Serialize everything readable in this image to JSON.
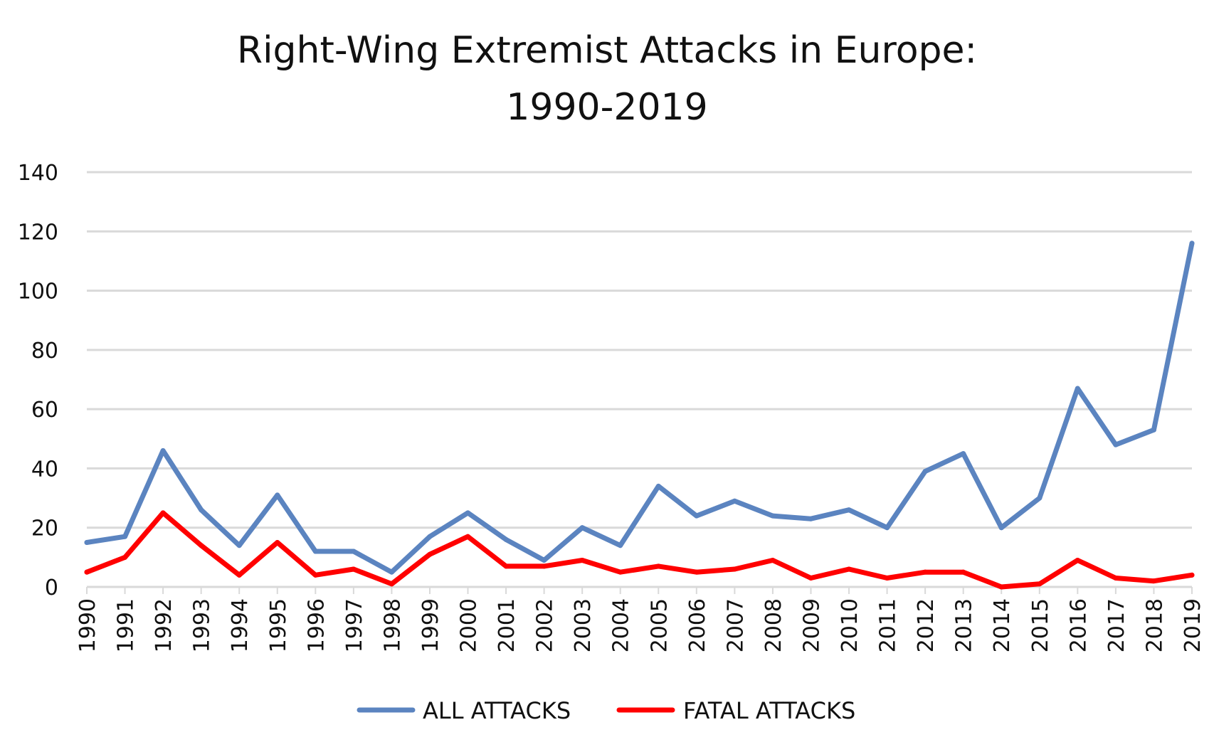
{
  "chart_data": {
    "type": "line",
    "title": "Right-Wing Extremist Attacks in Europe:",
    "subtitle": "1990-2019",
    "xlabel": "",
    "ylabel": "",
    "x": [
      "1990",
      "1991",
      "1992",
      "1993",
      "1994",
      "1995",
      "1996",
      "1997",
      "1998",
      "1999",
      "2000",
      "2001",
      "2002",
      "2003",
      "2004",
      "2005",
      "2006",
      "2007",
      "2008",
      "2009",
      "2010",
      "2011",
      "2012",
      "2013",
      "2014",
      "2015",
      "2016",
      "2017",
      "2018",
      "2019"
    ],
    "ylim": [
      0,
      140
    ],
    "yticks": [
      "0",
      "20",
      "40",
      "60",
      "80",
      "100",
      "120",
      "140"
    ],
    "grid": true,
    "legend_position": "bottom-center",
    "series": [
      {
        "name": "ALL ATTACKS",
        "color": "#5B84C0",
        "values": [
          15,
          17,
          46,
          26,
          14,
          31,
          12,
          12,
          5,
          17,
          25,
          16,
          9,
          20,
          14,
          34,
          24,
          29,
          24,
          23,
          26,
          20,
          39,
          45,
          20,
          30,
          67,
          48,
          53,
          116
        ]
      },
      {
        "name": "FATAL ATTACKS",
        "color": "#FF0000",
        "values": [
          5,
          10,
          25,
          14,
          4,
          15,
          4,
          6,
          1,
          11,
          17,
          7,
          7,
          9,
          5,
          7,
          5,
          6,
          9,
          3,
          6,
          3,
          5,
          5,
          0,
          1,
          9,
          3,
          2,
          4
        ]
      }
    ]
  }
}
